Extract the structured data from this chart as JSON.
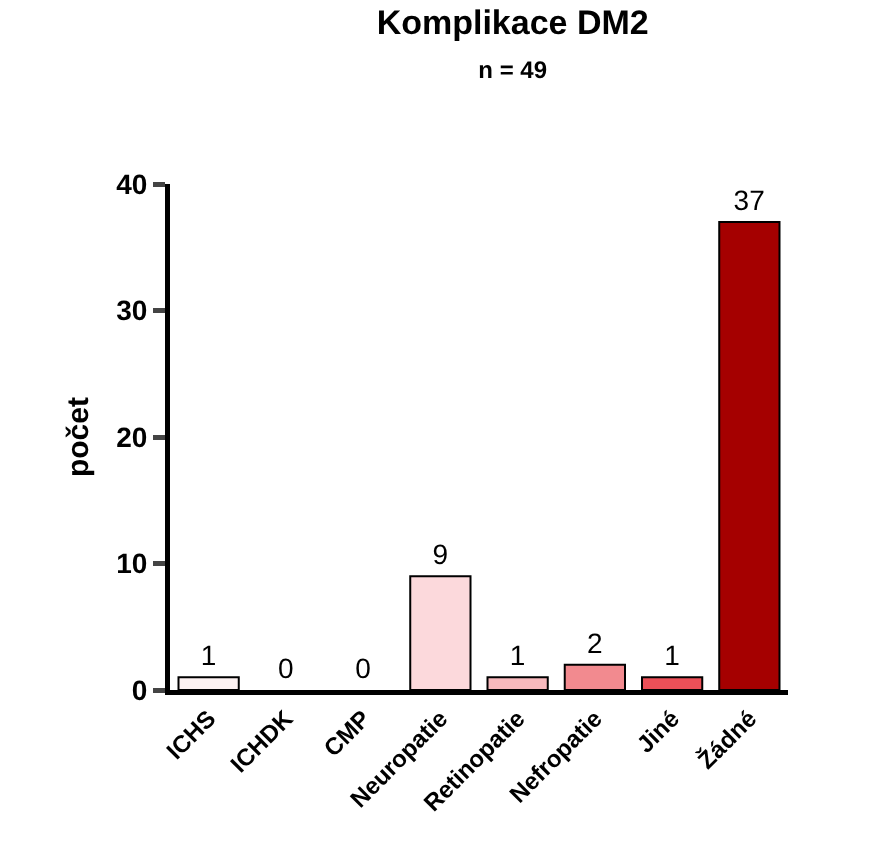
{
  "chart_data": {
    "type": "bar",
    "title": "Komplikace DM2",
    "subtitle": "n = 49",
    "ylabel": "počet",
    "categories": [
      "ICHS",
      "ICHDK",
      "CMP",
      "Neuropatie",
      "Retinopatie",
      "Nefropatie",
      "Jiné",
      "Žádné"
    ],
    "values": [
      1,
      0,
      0,
      9,
      1,
      2,
      1,
      37
    ],
    "colors": [
      "#fdf2f2",
      "#fde6e7",
      "#fcdadd",
      "#fcd9dc",
      "#f7b9bd",
      "#f28a8f",
      "#ec5058",
      "#a50000"
    ],
    "ylim": [
      0,
      40
    ],
    "yticks": [
      0,
      10,
      20,
      30,
      40
    ],
    "grid": false,
    "data_labels": true
  }
}
